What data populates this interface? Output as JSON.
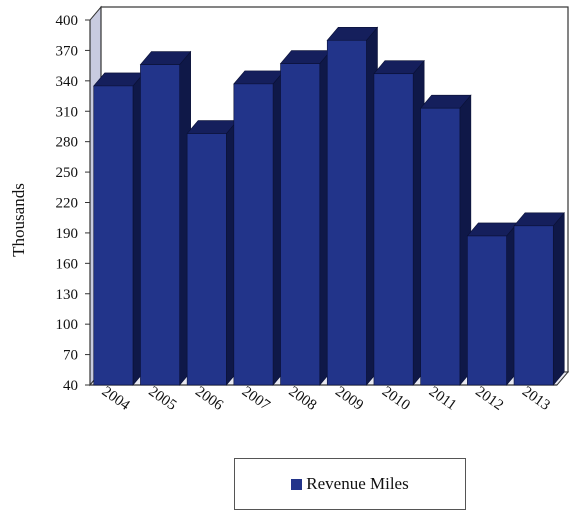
{
  "chart_data": {
    "type": "bar",
    "categories": [
      "2004",
      "2005",
      "2006",
      "2007",
      "2008",
      "2009",
      "2010",
      "2011",
      "2012",
      "2013"
    ],
    "series": [
      {
        "name": "Revenue Miles",
        "values": [
          335,
          356,
          288,
          337,
          357,
          380,
          347,
          313,
          187,
          197
        ]
      }
    ],
    "title": "",
    "xlabel": "",
    "ylabel": "Thousands",
    "ylim": [
      40,
      400
    ],
    "yticks": [
      40,
      70,
      100,
      130,
      160,
      190,
      220,
      250,
      280,
      310,
      340,
      370,
      400
    ],
    "grid": false,
    "legend": "bottom",
    "style": "3d",
    "colors": {
      "front": "#22348a",
      "top": "#151f5c",
      "side": "#0f1848",
      "wall": "#c8cbe0"
    }
  }
}
